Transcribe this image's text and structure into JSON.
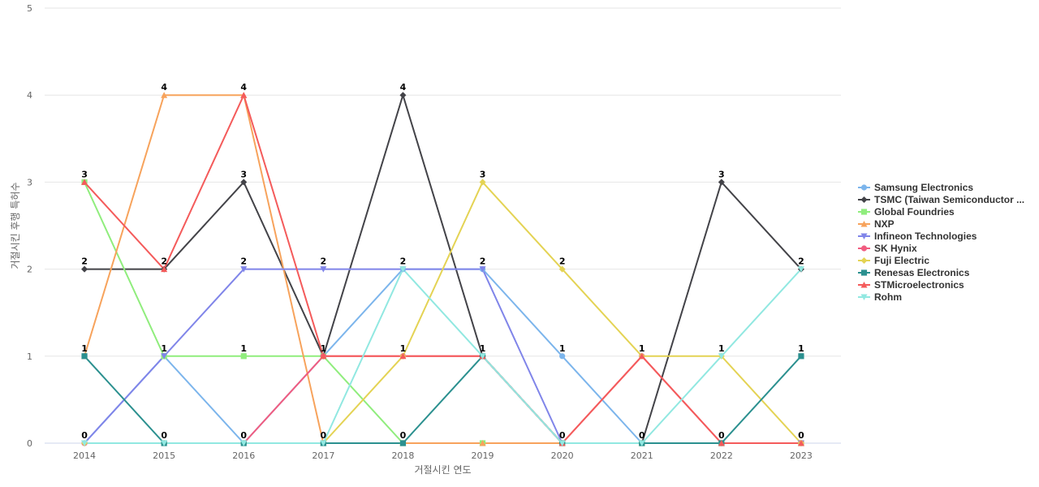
{
  "chart_data": {
    "type": "line",
    "title": "",
    "xlabel": "거절시킨 연도",
    "ylabel": "거절시킨 후행 특허수",
    "x": [
      "2014",
      "2015",
      "2016",
      "2017",
      "2018",
      "2019",
      "2020",
      "2021",
      "2022",
      "2023"
    ],
    "ylim": [
      0,
      5
    ],
    "yticks": [
      0,
      1,
      2,
      3,
      4,
      5
    ],
    "grid": true,
    "legend_position": "right",
    "series": [
      {
        "name": "Samsung Electronics",
        "color": "#7cb5ec",
        "marker": "circle",
        "values": [
          0,
          1,
          0,
          1,
          2,
          2,
          1,
          0,
          0,
          0
        ]
      },
      {
        "name": "TSMC (Taiwan Semiconductor ...",
        "color": "#434348",
        "marker": "diamond",
        "values": [
          2,
          2,
          3,
          1,
          4,
          1,
          0,
          0,
          3,
          2
        ]
      },
      {
        "name": "Global Foundries",
        "color": "#90ed7d",
        "marker": "square",
        "values": [
          3,
          1,
          1,
          1,
          0,
          0,
          0,
          0,
          0,
          0
        ]
      },
      {
        "name": "NXP",
        "color": "#f7a35c",
        "marker": "triangle",
        "values": [
          1,
          4,
          4,
          0,
          0,
          0,
          0,
          0,
          0,
          0
        ]
      },
      {
        "name": "Infineon Technologies",
        "color": "#8085e9",
        "marker": "triangle-down",
        "values": [
          0,
          1,
          2,
          2,
          2,
          2,
          0,
          0,
          0,
          0
        ]
      },
      {
        "name": "SK Hynix",
        "color": "#f15c80",
        "marker": "circle",
        "values": [
          0,
          0,
          0,
          1,
          1,
          1,
          0,
          1,
          0,
          0
        ]
      },
      {
        "name": "Fuji Electric",
        "color": "#e4d354",
        "marker": "diamond",
        "values": [
          0,
          0,
          0,
          0,
          1,
          3,
          2,
          1,
          1,
          0
        ]
      },
      {
        "name": "Renesas Electronics",
        "color": "#2b908f",
        "marker": "square",
        "values": [
          1,
          0,
          0,
          0,
          0,
          1,
          0,
          0,
          0,
          1
        ]
      },
      {
        "name": "STMicroelectronics",
        "color": "#f45b5b",
        "marker": "triangle",
        "values": [
          3,
          2,
          4,
          1,
          1,
          1,
          0,
          1,
          0,
          0
        ]
      },
      {
        "name": "Rohm",
        "color": "#91e8e1",
        "marker": "triangle-down",
        "values": [
          0,
          0,
          0,
          0,
          2,
          1,
          0,
          0,
          1,
          2
        ]
      }
    ],
    "data_labels": [
      {
        "x": "2014",
        "values": [
          "3",
          "2",
          "1",
          "0"
        ]
      },
      {
        "x": "2015",
        "values": [
          "4",
          "2",
          "1",
          "0"
        ]
      },
      {
        "x": "2016",
        "values": [
          "4",
          "3",
          "2",
          "1",
          "0"
        ]
      },
      {
        "x": "2017",
        "values": [
          "2",
          "1",
          "0"
        ]
      },
      {
        "x": "2018",
        "values": [
          "4",
          "2",
          "1",
          "0"
        ]
      },
      {
        "x": "2019",
        "values": [
          "3",
          "2",
          "1"
        ]
      },
      {
        "x": "2020",
        "values": [
          "2",
          "1",
          "0"
        ]
      },
      {
        "x": "2021",
        "values": [
          "1",
          "0"
        ]
      },
      {
        "x": "2022",
        "values": [
          "3",
          "1",
          "0"
        ]
      },
      {
        "x": "2023",
        "values": [
          "2",
          "1",
          "0"
        ]
      }
    ]
  }
}
